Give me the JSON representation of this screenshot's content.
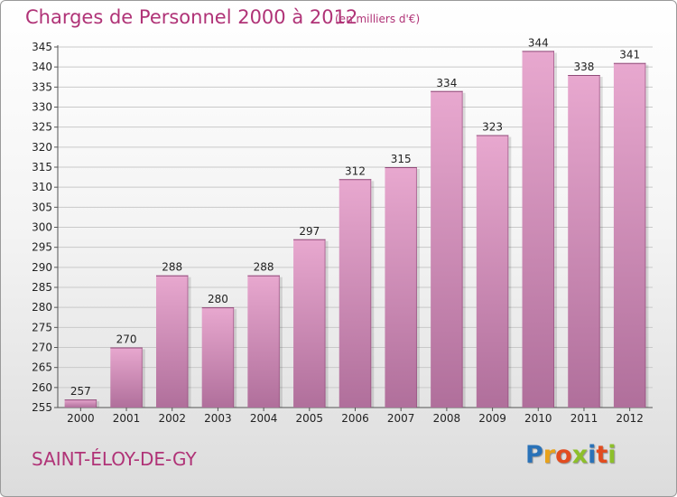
{
  "header": {
    "title": "Charges de Personnel 2000 à 2012",
    "subtitle": "(en milliers d'€)"
  },
  "footer": {
    "commune": "SAINT-ÉLOY-DE-GY",
    "logo_letters": [
      "P",
      "r",
      "o",
      "x",
      "i",
      "t",
      "i"
    ],
    "logo_colors": [
      "#2a72b8",
      "#e8a21b",
      "#e24c1f",
      "#8dbf2a",
      "#2a72b8",
      "#e24c1f",
      "#8dbf2a"
    ]
  },
  "colors": {
    "bar_top": "#e8a8cf",
    "bar_bottom": "#b06f9b",
    "bar_edge": "#8f4a78",
    "grid": "#c9c9c9",
    "text": "#222222",
    "accent": "#b03377"
  },
  "chart_data": {
    "type": "bar",
    "title": "Charges de Personnel 2000 à 2012",
    "subtitle": "(en milliers d'€)",
    "xlabel": "",
    "ylabel": "",
    "categories": [
      "2000",
      "2001",
      "2002",
      "2003",
      "2004",
      "2005",
      "2006",
      "2007",
      "2008",
      "2009",
      "2010",
      "2011",
      "2012"
    ],
    "values": [
      257,
      270,
      288,
      280,
      288,
      297,
      312,
      315,
      334,
      323,
      344,
      338,
      341
    ],
    "ylim": [
      255,
      345
    ],
    "ytick_step": 5,
    "grid": true,
    "legend": "none"
  }
}
